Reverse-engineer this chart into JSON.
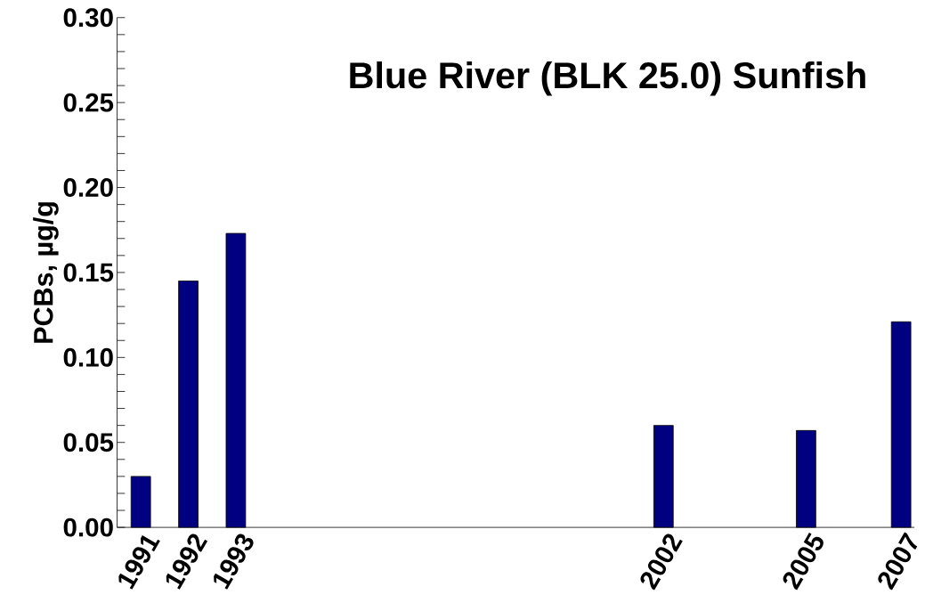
{
  "chart_data": {
    "type": "bar",
    "title": "Blue River (BLK 25.0) Sunfish",
    "ylabel": "PCBs, µg/g",
    "categories": [
      "1991",
      "1992",
      "1993",
      null,
      null,
      null,
      null,
      null,
      null,
      null,
      null,
      "2002",
      null,
      null,
      "2005",
      null,
      "2007"
    ],
    "values": [
      0.03,
      0.145,
      0.173,
      null,
      null,
      null,
      null,
      null,
      null,
      null,
      null,
      0.06,
      null,
      null,
      0.057,
      null,
      0.121
    ],
    "color": "#000080",
    "ylim": [
      0,
      0.3
    ],
    "yticks": [
      {
        "value": 0,
        "label": "0.00"
      },
      {
        "value": 0.01,
        "label": null
      },
      {
        "value": 0.02,
        "label": null
      },
      {
        "value": 0.03,
        "label": null
      },
      {
        "value": 0.04,
        "label": null
      },
      {
        "value": 0.05,
        "label": "0.05"
      },
      {
        "value": 0.06,
        "label": null
      },
      {
        "value": 0.07,
        "label": null
      },
      {
        "value": 0.08,
        "label": null
      },
      {
        "value": 0.09,
        "label": null
      },
      {
        "value": 0.1,
        "label": "0.10"
      },
      {
        "value": 0.11,
        "label": null
      },
      {
        "value": 0.12,
        "label": null
      },
      {
        "value": 0.13,
        "label": null
      },
      {
        "value": 0.14,
        "label": null
      },
      {
        "value": 0.15,
        "label": "0.15"
      },
      {
        "value": 0.16,
        "label": null
      },
      {
        "value": 0.17,
        "label": null
      },
      {
        "value": 0.18,
        "label": null
      },
      {
        "value": 0.19,
        "label": null
      },
      {
        "value": 0.2,
        "label": "0.20"
      },
      {
        "value": 0.21,
        "label": null
      },
      {
        "value": 0.22,
        "label": null
      },
      {
        "value": 0.23,
        "label": null
      },
      {
        "value": 0.24,
        "label": null
      },
      {
        "value": 0.25,
        "label": "0.25"
      },
      {
        "value": 0.26,
        "label": null
      },
      {
        "value": 0.27,
        "label": null
      },
      {
        "value": 0.28,
        "label": null
      },
      {
        "value": 0.29,
        "label": null
      },
      {
        "value": 0.3,
        "label": "0.30"
      }
    ],
    "grid": false
  }
}
